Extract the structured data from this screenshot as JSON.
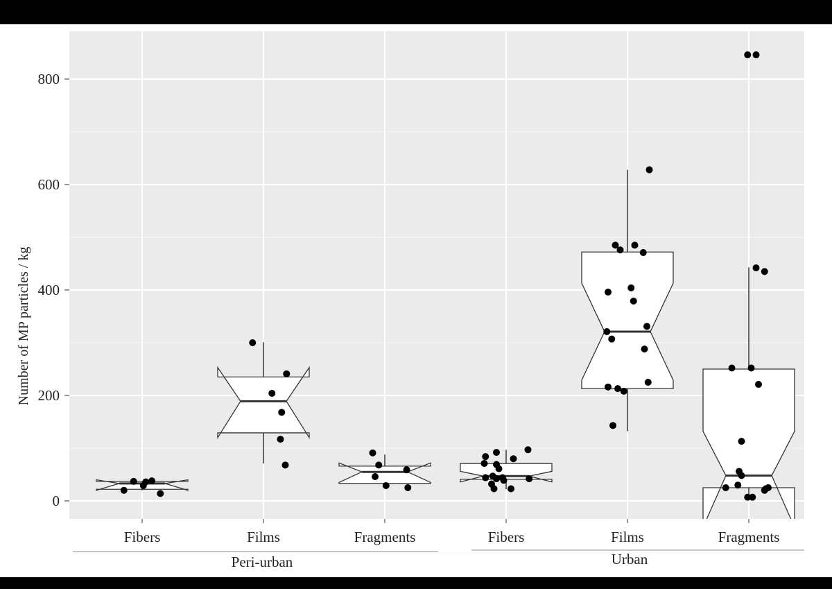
{
  "chart_data": {
    "type": "boxplot",
    "ylabel": "Number of MP particles / kg",
    "ylim": [
      -34,
      891
    ],
    "yticks": [
      0,
      200,
      400,
      600,
      800
    ],
    "ytick_labels": [
      "0",
      "200",
      "400",
      "600",
      "800"
    ],
    "grid": true,
    "categories": [
      "Fibers",
      "Films",
      "Fragments",
      "Fibers",
      "Films",
      "Fragments"
    ],
    "groups": [
      {
        "label": "Peri-urban",
        "categories": [
          0,
          1,
          2
        ]
      },
      {
        "label": "Urban",
        "categories": [
          3,
          4,
          5
        ]
      }
    ],
    "boxes": [
      {
        "group": "Peri-urban",
        "category": "Fibers",
        "lower": 20,
        "q1": 22,
        "median": 33,
        "q3": 37,
        "upper": 38,
        "notch_low": 20,
        "notch_high": 40,
        "points": [
          37,
          20,
          29,
          36,
          38,
          14
        ],
        "jitter": [
          -0.07,
          -0.15,
          0.01,
          0.03,
          0.08,
          0.15
        ]
      },
      {
        "group": "Peri-urban",
        "category": "Films",
        "lower": 71,
        "q1": 129,
        "median": 189,
        "q3": 235,
        "upper": 301,
        "notch_low": 120,
        "notch_high": 253,
        "points": [
          300,
          241,
          204,
          168,
          117,
          68
        ],
        "jitter": [
          -0.09,
          0.19,
          0.07,
          0.15,
          0.14,
          0.18
        ]
      },
      {
        "group": "Peri-urban",
        "category": "Fragments",
        "lower": 33,
        "q1": 33,
        "median": 55,
        "q3": 66,
        "upper": 88,
        "notch_low": 35,
        "notch_high": 72,
        "points": [
          91,
          68,
          46,
          29,
          59,
          25
        ],
        "jitter": [
          -0.1,
          -0.05,
          -0.08,
          0.01,
          0.18,
          0.19
        ]
      },
      {
        "group": "Urban",
        "category": "Fibers",
        "lower": 22,
        "q1": 41,
        "median": 47,
        "q3": 71,
        "upper": 97,
        "notch_low": 36,
        "notch_high": 56,
        "points": [
          84,
          92,
          97,
          80,
          71,
          69,
          61,
          44,
          47,
          42,
          44,
          39,
          42,
          32,
          23,
          23
        ],
        "jitter": [
          -0.17,
          -0.08,
          0.18,
          0.06,
          -0.18,
          -0.08,
          -0.06,
          -0.17,
          -0.11,
          -0.08,
          -0.03,
          -0.02,
          0.19,
          -0.12,
          -0.1,
          0.04
        ]
      },
      {
        "group": "Urban",
        "category": "Films",
        "lower": 132,
        "q1": 213,
        "median": 321,
        "q3": 472,
        "upper": 628,
        "notch_low": 229,
        "notch_high": 413,
        "points": [
          628,
          485,
          476,
          485,
          471,
          396,
          404,
          379,
          331,
          321,
          307,
          288,
          225,
          216,
          213,
          208,
          143
        ],
        "jitter": [
          0.18,
          -0.1,
          -0.06,
          0.06,
          0.13,
          -0.16,
          0.03,
          0.05,
          0.16,
          -0.17,
          -0.13,
          0.14,
          0.17,
          -0.16,
          -0.08,
          -0.03,
          -0.12
        ]
      },
      {
        "group": "Urban",
        "category": "Fragments",
        "lower": 7,
        "q1": 25,
        "median": 48,
        "q3": 250,
        "upper": 443,
        "notch_low": -50,
        "notch_high": 132,
        "points": [
          846,
          846,
          442,
          435,
          252,
          252,
          221,
          113,
          56,
          48,
          30,
          25,
          23,
          25,
          20,
          7,
          7
        ],
        "jitter": [
          -0.01,
          0.06,
          0.06,
          0.13,
          -0.14,
          0.02,
          0.08,
          -0.06,
          -0.08,
          -0.06,
          -0.09,
          -0.19,
          0.14,
          0.16,
          0.13,
          -0.01,
          0.03
        ]
      }
    ]
  }
}
